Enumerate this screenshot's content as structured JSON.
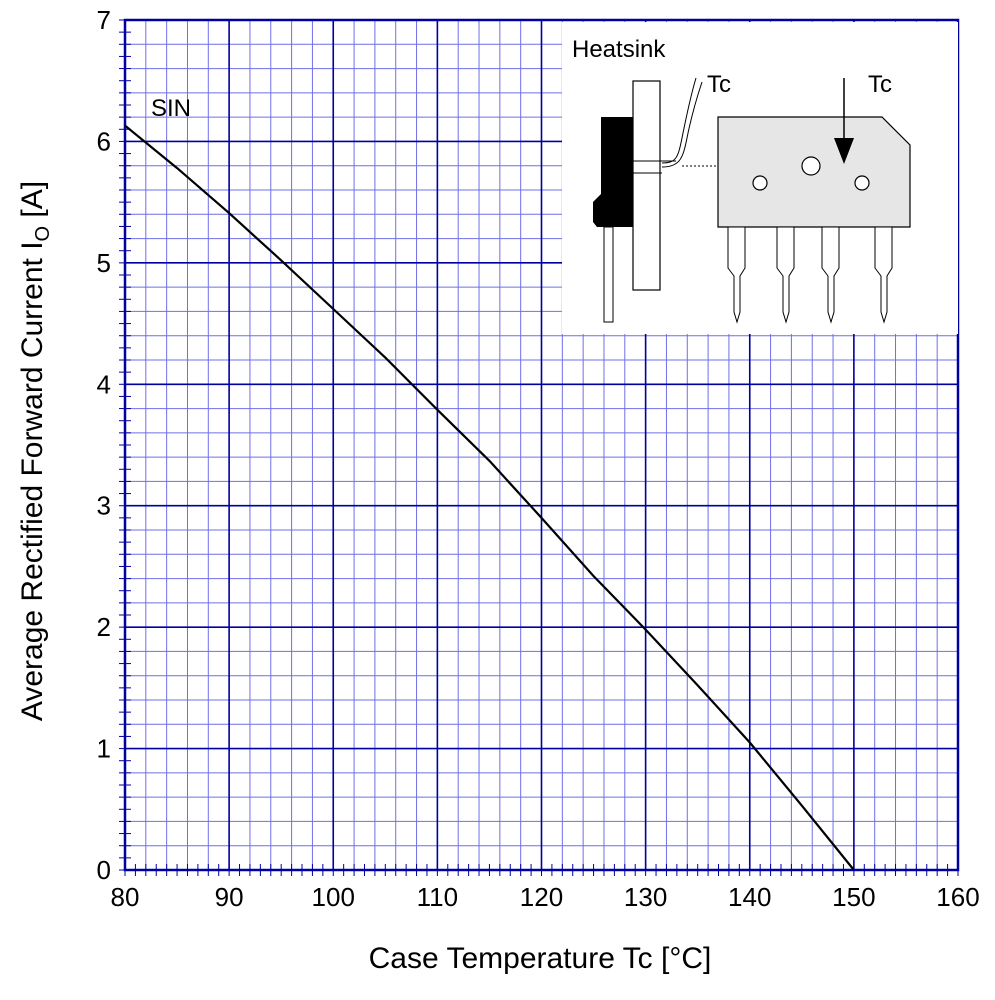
{
  "chart_data": {
    "type": "line",
    "xlabel": "Case Temperature  Tc  [°C]",
    "ylabel_main": "Average Rectified Forward Current  I",
    "ylabel_sub": "O",
    "ylabel_unit": " [A]",
    "xlim": [
      80,
      160
    ],
    "ylim": [
      0,
      7
    ],
    "x_ticks": [
      80,
      90,
      100,
      110,
      120,
      130,
      140,
      150,
      160
    ],
    "y_ticks": [
      0,
      1,
      2,
      3,
      4,
      5,
      6,
      7
    ],
    "grid": true,
    "minor_grid": true,
    "series": [
      {
        "name": "SIN",
        "x": [
          80,
          85,
          90,
          95,
          100,
          105,
          110,
          115,
          120,
          125,
          130,
          135,
          140,
          145,
          150
        ],
        "y": [
          6.13,
          5.78,
          5.41,
          5.02,
          4.62,
          4.22,
          3.79,
          3.37,
          2.9,
          2.42,
          1.98,
          1.52,
          1.05,
          0.53,
          0.0
        ]
      }
    ],
    "annotations": {
      "series_label": "SIN",
      "heatsink": "Heatsink",
      "tc_left": "Tc",
      "tc_right": "Tc"
    },
    "colors": {
      "grid_major": "#0000a0",
      "grid_minor": "#6f6fe8",
      "curve": "#000000",
      "package_body": "#e6e6e6"
    }
  }
}
